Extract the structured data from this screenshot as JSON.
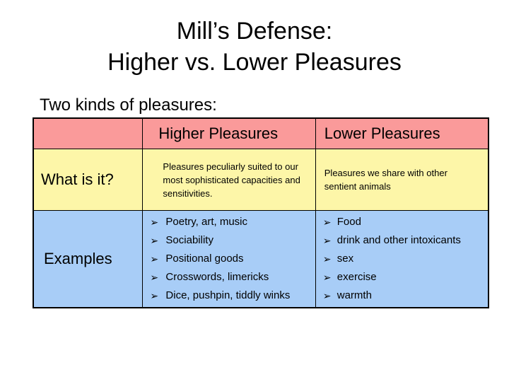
{
  "title": {
    "line1": "Mill’s Defense:",
    "line2": "Higher vs. Lower Pleasures"
  },
  "intro": "Two kinds of pleasures:",
  "table": {
    "columns": [
      "",
      "Higher Pleasures",
      "Lower Pleasures"
    ],
    "rows": [
      {
        "label": "What is it?",
        "higher": "Pleasures peculiarly suited to our most sophisticated capacities and sensitivities.",
        "lower": "Pleasures we share with other sentient animals"
      },
      {
        "label": "Examples",
        "higher_items": [
          "Poetry, art, music",
          "Sociability",
          "Positional goods",
          "Crosswords, limericks",
          "Dice, pushpin, tiddly winks"
        ],
        "lower_items": [
          "Food",
          "drink and other intoxicants",
          "sex",
          "exercise",
          "warmth"
        ]
      }
    ]
  },
  "bullet_glyph": "➢",
  "colors": {
    "header_bg": "#fa9a9a",
    "definition_bg": "#fdf6a8",
    "examples_bg": "#a8cdf7"
  }
}
